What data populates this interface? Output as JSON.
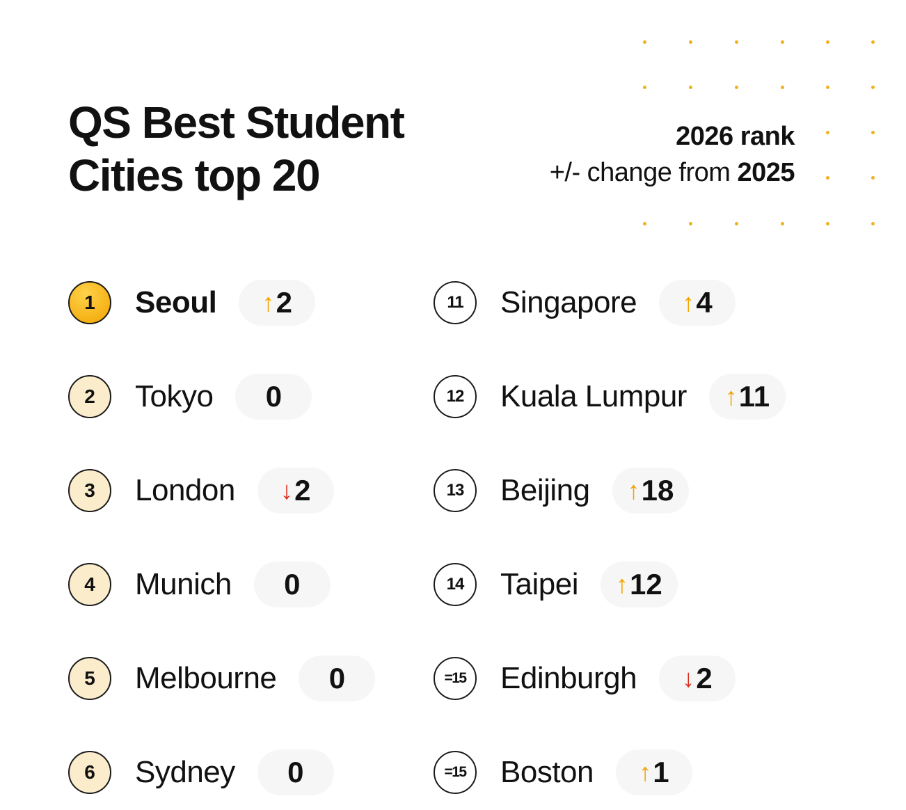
{
  "title_line1": "QS Best Student",
  "title_line2": "Cities top 20",
  "legend": {
    "line1": "2026 rank",
    "line2_prefix": "+/- change from ",
    "line2_year": "2025"
  },
  "colors": {
    "accent": "#f2a400",
    "up": "#f2a400",
    "down": "#d92b1e",
    "pill": "#f6f6f6",
    "badge_fill": "#fbeccc"
  },
  "left": [
    {
      "rank": "1",
      "city": "Seoul",
      "dir": "up",
      "change": "2"
    },
    {
      "rank": "2",
      "city": "Tokyo",
      "dir": "none",
      "change": "0"
    },
    {
      "rank": "3",
      "city": "London",
      "dir": "down",
      "change": "2"
    },
    {
      "rank": "4",
      "city": "Munich",
      "dir": "none",
      "change": "0"
    },
    {
      "rank": "5",
      "city": "Melbourne",
      "dir": "none",
      "change": "0"
    },
    {
      "rank": "6",
      "city": "Sydney",
      "dir": "none",
      "change": "0"
    }
  ],
  "right": [
    {
      "rank": "11",
      "city": "Singapore",
      "dir": "up",
      "change": "4"
    },
    {
      "rank": "12",
      "city": "Kuala Lumpur",
      "dir": "up",
      "change": "11"
    },
    {
      "rank": "13",
      "city": "Beijing",
      "dir": "up",
      "change": "18"
    },
    {
      "rank": "14",
      "city": "Taipei",
      "dir": "up",
      "change": "12"
    },
    {
      "rank": "=15",
      "city": "Edinburgh",
      "dir": "down",
      "change": "2"
    },
    {
      "rank": "=15",
      "city": "Boston",
      "dir": "up",
      "change": "1"
    }
  ]
}
